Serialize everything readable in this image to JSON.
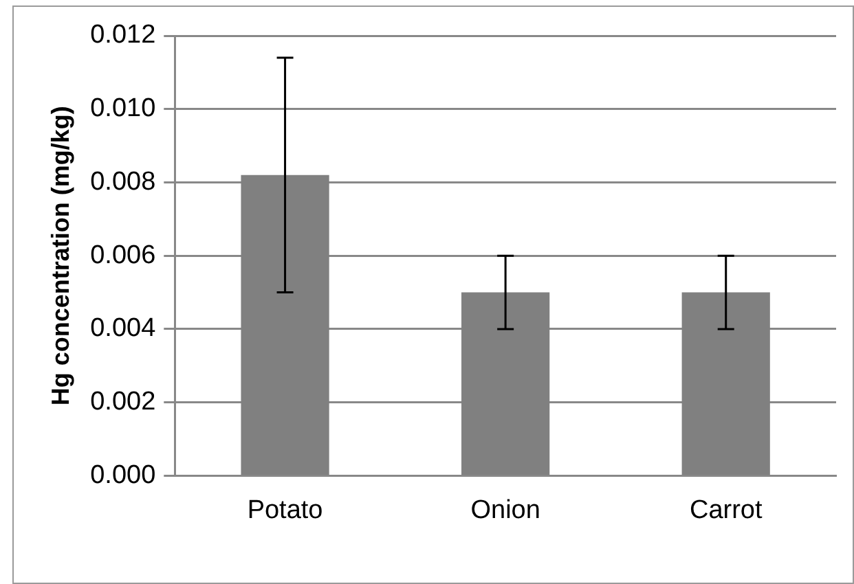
{
  "chart_data": {
    "type": "bar",
    "ylabel": "Hg concentration (mg/kg)",
    "categories": [
      "Potato",
      "Onion",
      "Carrot"
    ],
    "values": [
      0.0082,
      0.005,
      0.005
    ],
    "errors": [
      0.0032,
      0.001,
      0.001
    ],
    "color": "#808080",
    "ylim": [
      0,
      0.012
    ],
    "yticks": [
      {
        "value": 0,
        "label": "0.000"
      },
      0.002,
      0.004,
      0.006,
      0.008,
      {
        "value": 0.01,
        "label": "0.010"
      },
      0.012
    ],
    "grid": "y",
    "legend": false
  }
}
